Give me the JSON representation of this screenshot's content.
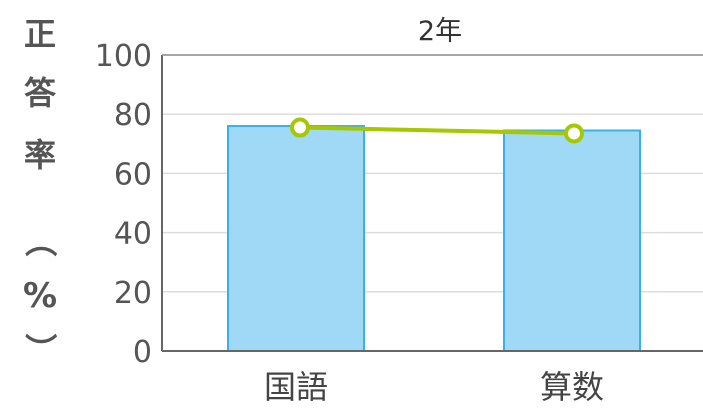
{
  "chart_data": {
    "type": "bar",
    "title": "2年",
    "ylabel_chars": [
      "正",
      "答",
      "率",
      "（",
      "%",
      "）"
    ],
    "ylim": [
      0,
      100
    ],
    "yticks": [
      0,
      20,
      40,
      60,
      80,
      100
    ],
    "categories": [
      "国語",
      "算数"
    ],
    "grid": true,
    "series": [
      {
        "kind": "bar",
        "values": [
          76,
          74.5
        ],
        "color": "#9fd9f6",
        "stroke": "#3bb0e8"
      },
      {
        "kind": "line",
        "values": [
          75.5,
          73.5
        ],
        "color": "#a6c800",
        "marker_fill": "#ffffff"
      }
    ]
  }
}
